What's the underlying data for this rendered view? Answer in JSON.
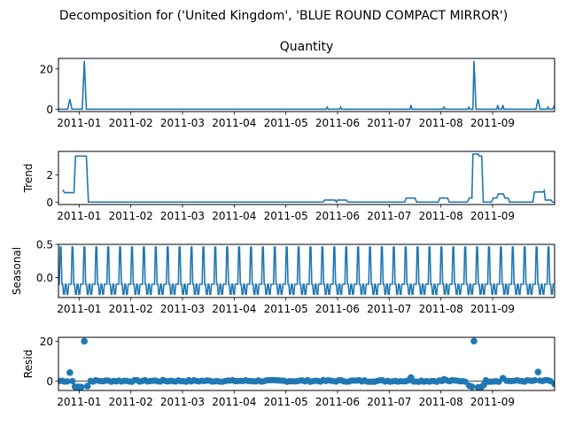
{
  "figure": {
    "title": "Decomposition for ('United Kingdom', 'BLUE ROUND COMPACT MIRROR')"
  },
  "chart_data": {
    "type": "line",
    "line_color": "#1f77b4",
    "x_tick_labels": [
      "2011-01",
      "2011-02",
      "2011-03",
      "2011-04",
      "2011-05",
      "2011-06",
      "2011-07",
      "2011-08",
      "2011-09"
    ],
    "x_domain_months": [
      12.6,
      22.2
    ],
    "grid": false,
    "panels": [
      {
        "title": "Quantity",
        "ylabel": "",
        "kind": "line",
        "ylim": [
          -1.2,
          25.2
        ],
        "yticks": [
          0,
          20
        ],
        "points": [
          [
            12.6,
            0
          ],
          [
            12.78,
            0
          ],
          [
            12.82,
            5
          ],
          [
            12.86,
            0
          ],
          [
            13.06,
            0
          ],
          [
            13.1,
            24
          ],
          [
            13.14,
            0
          ],
          [
            17.78,
            0
          ],
          [
            17.8,
            1
          ],
          [
            17.82,
            0
          ],
          [
            18.04,
            0
          ],
          [
            18.06,
            1
          ],
          [
            18.08,
            0
          ],
          [
            19.4,
            0
          ],
          [
            19.42,
            2
          ],
          [
            19.44,
            0
          ],
          [
            20.04,
            0
          ],
          [
            20.06,
            1
          ],
          [
            20.08,
            0
          ],
          [
            20.52,
            0
          ],
          [
            20.54,
            1
          ],
          [
            20.56,
            0
          ],
          [
            20.62,
            0
          ],
          [
            20.64,
            24
          ],
          [
            20.68,
            0
          ],
          [
            21.08,
            0
          ],
          [
            21.1,
            2
          ],
          [
            21.12,
            0
          ],
          [
            21.18,
            0
          ],
          [
            21.2,
            2
          ],
          [
            21.22,
            0
          ],
          [
            21.84,
            0
          ],
          [
            21.88,
            5
          ],
          [
            21.92,
            0
          ],
          [
            22.05,
            0
          ],
          [
            22.07,
            1
          ],
          [
            22.09,
            0
          ],
          [
            22.16,
            0
          ],
          [
            22.2,
            2
          ]
        ]
      },
      {
        "title": "",
        "ylabel": "Trend",
        "kind": "line",
        "ylim": [
          -0.18,
          3.75
        ],
        "yticks": [
          0,
          2
        ],
        "points": [
          [
            12.68,
            0.9
          ],
          [
            12.72,
            0.7
          ],
          [
            12.9,
            0.7
          ],
          [
            12.93,
            3.4
          ],
          [
            13.14,
            3.4
          ],
          [
            13.18,
            0
          ],
          [
            17.72,
            0
          ],
          [
            17.75,
            0.15
          ],
          [
            17.95,
            0.15
          ],
          [
            17.98,
            0
          ],
          [
            18.0,
            0.15
          ],
          [
            18.17,
            0.15
          ],
          [
            18.2,
            0
          ],
          [
            19.3,
            0
          ],
          [
            19.33,
            0.3
          ],
          [
            19.5,
            0.3
          ],
          [
            19.53,
            0
          ],
          [
            19.95,
            0
          ],
          [
            19.98,
            0.3
          ],
          [
            20.13,
            0.3
          ],
          [
            20.16,
            0
          ],
          [
            20.51,
            0
          ],
          [
            20.55,
            0.3
          ],
          [
            20.6,
            0.3
          ],
          [
            20.62,
            3.55
          ],
          [
            20.72,
            3.55
          ],
          [
            20.74,
            3.4
          ],
          [
            20.79,
            3.4
          ],
          [
            20.82,
            0
          ],
          [
            20.98,
            0
          ],
          [
            21.01,
            0.3
          ],
          [
            21.08,
            0.3
          ],
          [
            21.11,
            0.6
          ],
          [
            21.21,
            0.6
          ],
          [
            21.24,
            0.3
          ],
          [
            21.3,
            0.3
          ],
          [
            21.33,
            0
          ],
          [
            21.78,
            0
          ],
          [
            21.81,
            0.75
          ],
          [
            21.98,
            0.75
          ],
          [
            22.0,
            0.85
          ],
          [
            22.02,
            0.15
          ],
          [
            22.13,
            0.15
          ],
          [
            22.16,
            0
          ],
          [
            22.28,
            0
          ],
          [
            22.31,
            0.3
          ]
        ]
      },
      {
        "title": "",
        "ylabel": "Seasonal",
        "kind": "seasonal",
        "ylim": [
          -0.3,
          0.5
        ],
        "yticks": [
          0.0,
          0.5
        ],
        "ytick_labels": [
          "0.0",
          "0.5"
        ],
        "period_days": 7,
        "cycle": [
          -0.1,
          0.46,
          -0.1,
          -0.25,
          -0.1,
          -0.25,
          -0.1
        ]
      },
      {
        "title": "",
        "ylabel": "Resid",
        "kind": "scatter",
        "ylim": [
          -4.8,
          22.0
        ],
        "yticks": [
          0,
          20
        ],
        "highlights": [
          [
            12.82,
            4.2
          ],
          [
            13.1,
            20.0
          ],
          [
            20.64,
            20.1
          ],
          [
            21.88,
            4.5
          ],
          [
            19.42,
            1.7
          ],
          [
            21.2,
            1.4
          ],
          [
            20.06,
            0.8
          ],
          [
            12.92,
            -2.9
          ],
          [
            12.98,
            -3.0
          ],
          [
            13.04,
            -3.1
          ],
          [
            13.16,
            -2.6
          ],
          [
            20.55,
            -2.4
          ],
          [
            20.6,
            -2.9
          ],
          [
            20.72,
            -3.2
          ],
          [
            20.78,
            -3.1
          ],
          [
            20.83,
            -2.0
          ],
          [
            22.2,
            -1.5
          ]
        ]
      }
    ]
  }
}
